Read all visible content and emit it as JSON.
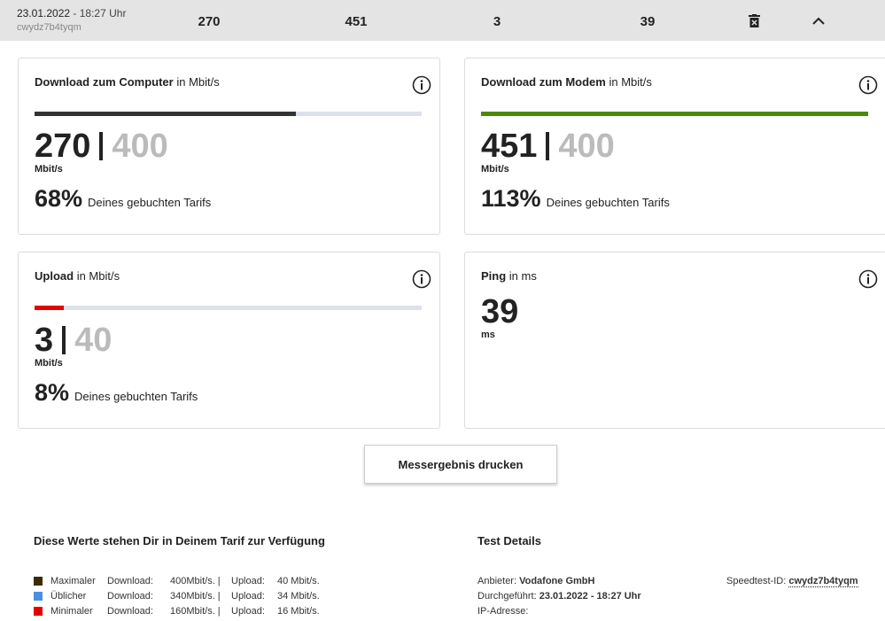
{
  "header": {
    "date": "23.01.2022",
    "time": "- 18:27 Uhr",
    "id": "cwydz7b4tyqm",
    "values": [
      270,
      451,
      3,
      39
    ]
  },
  "cards": [
    {
      "title": "Download zum Computer",
      "unit_label": "in Mbit/s",
      "value": 270,
      "max": 400,
      "unit": "Mbit/s",
      "percent": "68%",
      "percent_text": "Deines gebuchten Tarifs",
      "bar_color": "#333333"
    },
    {
      "title": "Download zum Modem",
      "unit_label": "in Mbit/s",
      "value": 451,
      "max": 400,
      "unit": "Mbit/s",
      "percent": "113%",
      "percent_text": "Deines gebuchten Tarifs",
      "bar_color": "#4a8a0a"
    },
    {
      "title": "Upload",
      "unit_label": "in Mbit/s",
      "value": 3,
      "max": 40,
      "unit": "Mbit/s",
      "percent": "8%",
      "percent_text": "Deines gebuchten Tarifs",
      "bar_color": "#e60000"
    },
    {
      "title": "Ping",
      "unit_label": "in ms",
      "value": 39,
      "unit": "ms"
    }
  ],
  "print_button": "Messergebnis drucken",
  "tariff": {
    "title": "Diese Werte stehen Dir in Deinem Tarif zur Verfügung",
    "rows": [
      {
        "color": "#3d2b00",
        "name": "Maximaler",
        "download_label": "Download:",
        "download": "400Mbit/s. |",
        "upload_label": "Upload:",
        "upload": "40 Mbit/s."
      },
      {
        "color": "#4a90e2",
        "name": "Üblicher",
        "download_label": "Download:",
        "download": "340Mbit/s. |",
        "upload_label": "Upload:",
        "upload": "34 Mbit/s."
      },
      {
        "color": "#e60000",
        "name": "Minimaler",
        "download_label": "Download:",
        "download": "160Mbit/s. |",
        "upload_label": "Upload:",
        "upload": "16 Mbit/s."
      }
    ]
  },
  "details": {
    "title": "Test Details",
    "provider_label": "Anbieter:",
    "provider": "Vodafone GmbH",
    "date_label": "Durchgeführt:",
    "date": "23.01.2022 - 18:27 Uhr",
    "ip_label": "IP-Adresse:",
    "id_label": "Speedtest-ID:",
    "id": "cwydz7b4tyqm"
  }
}
